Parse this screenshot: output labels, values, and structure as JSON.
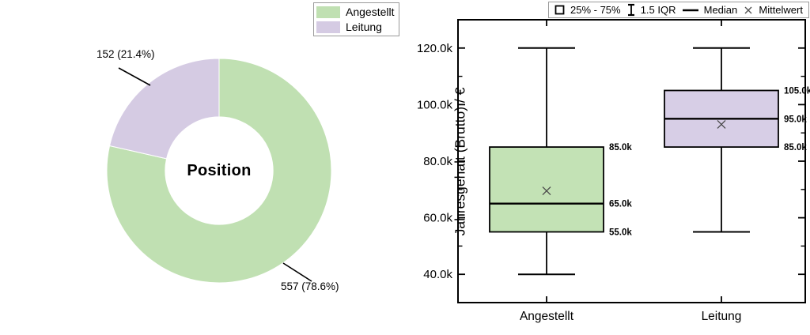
{
  "chart_data": [
    {
      "type": "pie",
      "subtype": "donut",
      "title": "Position",
      "labels": [
        "Angestellt",
        "Leitung"
      ],
      "values": [
        557,
        152
      ],
      "percents": [
        78.6,
        21.4
      ],
      "slice_labels": [
        "557 (78.6%)",
        "152 (21.4%)"
      ],
      "colors": [
        "#c0e0b2",
        "#d5cbe3"
      ],
      "donut_hole_ratio": 0.48,
      "start_angle": "12-oclock-clockwise",
      "legend_position": "top-right-of-pie"
    },
    {
      "type": "box",
      "ylabel": "Jahresgehalt (Brutto) / €",
      "categories": [
        "Angestellt",
        "Leitung"
      ],
      "ylim": [
        30,
        130
      ],
      "ytick_values": [
        40,
        60,
        80,
        100,
        120
      ],
      "ytick_labels": [
        "40.0k",
        "60.0k",
        "80.0k",
        "100.0k",
        "120.0k"
      ],
      "minor_tick_values": [
        50,
        70,
        90,
        110
      ],
      "legend": [
        "25% - 75%",
        "1.5 IQR",
        "Median",
        "Mittelwert"
      ],
      "series": [
        {
          "name": "Angestellt",
          "color": "#c3e2b5",
          "whisker_low": 40,
          "q1": 55,
          "median": 65,
          "q3": 85,
          "whisker_high": 120,
          "mean": 69.5,
          "annotation_labels": [
            "85.0k",
            "65.0k",
            "55.0k"
          ],
          "annotation_values": [
            85,
            65,
            55
          ]
        },
        {
          "name": "Leitung",
          "color": "#d7cee6",
          "whisker_low": 55,
          "q1": 85,
          "median": 95,
          "q3": 105,
          "whisker_high": 120,
          "mean": 93,
          "annotation_labels": [
            "105.0k",
            "95.0k",
            "85.0k"
          ],
          "annotation_values": [
            105,
            95,
            85
          ]
        }
      ]
    }
  ]
}
